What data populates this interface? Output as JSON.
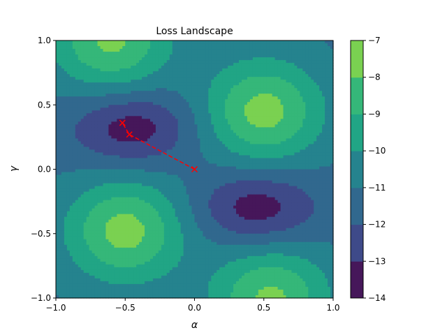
{
  "chart_data": {
    "type": "contourf",
    "title": "Loss Landscape",
    "xlabel": "α",
    "ylabel": "γ",
    "xlim": [
      -1.0,
      1.0
    ],
    "ylim": [
      -1.0,
      1.0
    ],
    "x_ticks": [
      -1.0,
      -0.5,
      0.0,
      0.5,
      1.0
    ],
    "x_tick_labels": [
      "−1.0",
      "−0.5",
      "0.0",
      "0.5",
      "1.0"
    ],
    "y_ticks": [
      -1.0,
      -0.5,
      0.0,
      0.5,
      1.0
    ],
    "y_tick_labels": [
      "−1.0",
      "−0.5",
      "0.0",
      "0.5",
      "1.0"
    ],
    "grid": false,
    "levels": [
      -14,
      -13,
      -12,
      -11,
      -10,
      -9,
      -8,
      -7
    ],
    "colorbar_tick_labels": [
      "−14",
      "−13",
      "−12",
      "−11",
      "−10",
      "−9",
      "−8",
      "−7"
    ],
    "level_colors": [
      "#46175a",
      "#3e4a89",
      "#31688e",
      "#25838e",
      "#21a585",
      "#35b779",
      "#7ad151",
      "#d8e219"
    ],
    "landscape": {
      "minima": [
        {
          "alpha": -0.45,
          "gamma": 0.32,
          "value": -13.6
        },
        {
          "alpha": 0.45,
          "gamma": -0.3,
          "value": -13.6
        }
      ],
      "maxima": [
        {
          "alpha": 0.5,
          "gamma": 0.45,
          "value": -7.6
        },
        {
          "alpha": -0.5,
          "gamma": -0.48,
          "value": -7.6
        },
        {
          "alpha": -0.6,
          "gamma": 1.0,
          "value": -7.8
        },
        {
          "alpha": 0.55,
          "gamma": -1.0,
          "value": -7.8
        }
      ]
    },
    "optimization_path": {
      "color": "#ff0000",
      "linestyle": "dashed",
      "marker": "x",
      "points": [
        {
          "alpha": 0.0,
          "gamma": 0.0
        },
        {
          "alpha": -0.47,
          "gamma": 0.27
        },
        {
          "alpha": -0.52,
          "gamma": 0.36
        }
      ]
    }
  }
}
